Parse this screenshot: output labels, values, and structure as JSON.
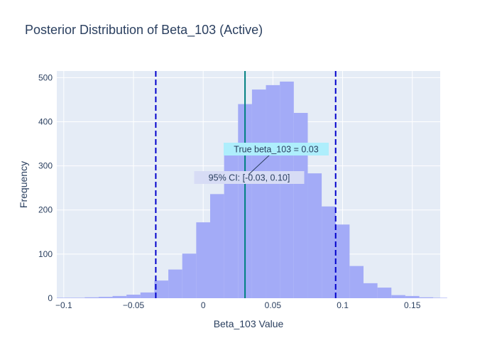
{
  "chart_data": {
    "type": "bar",
    "title": "Posterior Distribution of Beta_103 (Active)",
    "xlabel": "Beta_103 Value",
    "ylabel": "Frequency",
    "xlim": [
      -0.105,
      0.17
    ],
    "ylim": [
      0,
      515
    ],
    "x_ticks": [
      -0.1,
      -0.05,
      0,
      0.05,
      0.1,
      0.15
    ],
    "x_tick_labels": [
      "−0.1",
      "−0.05",
      "0",
      "0.05",
      "0.1",
      "0.15"
    ],
    "y_ticks": [
      0,
      100,
      200,
      300,
      400,
      500
    ],
    "bin_width": 0.01,
    "bin_edges_start": -0.105,
    "values": [
      1,
      1,
      2,
      3,
      5,
      8,
      13,
      40,
      65,
      101,
      172,
      236,
      341,
      440,
      473,
      483,
      491,
      420,
      283,
      208,
      167,
      73,
      34,
      24,
      7,
      5,
      2,
      1
    ],
    "bar_color": "#a3abf7",
    "grid": true,
    "legend": "none",
    "vlines": [
      {
        "x": 0.03,
        "style": "solid",
        "color": "#008080",
        "meaning": "true value"
      },
      {
        "x": -0.034,
        "style": "dashed",
        "color": "#0000cc",
        "meaning": "ci lower"
      },
      {
        "x": 0.095,
        "style": "dashed",
        "color": "#0000cc",
        "meaning": "ci upper"
      }
    ],
    "annotations": {
      "true_value": "True beta_103 = 0.03",
      "ci": "95% CI: [-0.03, 0.10]"
    },
    "annotation_colors": {
      "true_value_bg": "#aeeefc",
      "ci_bg": "#d7dcf5"
    }
  }
}
